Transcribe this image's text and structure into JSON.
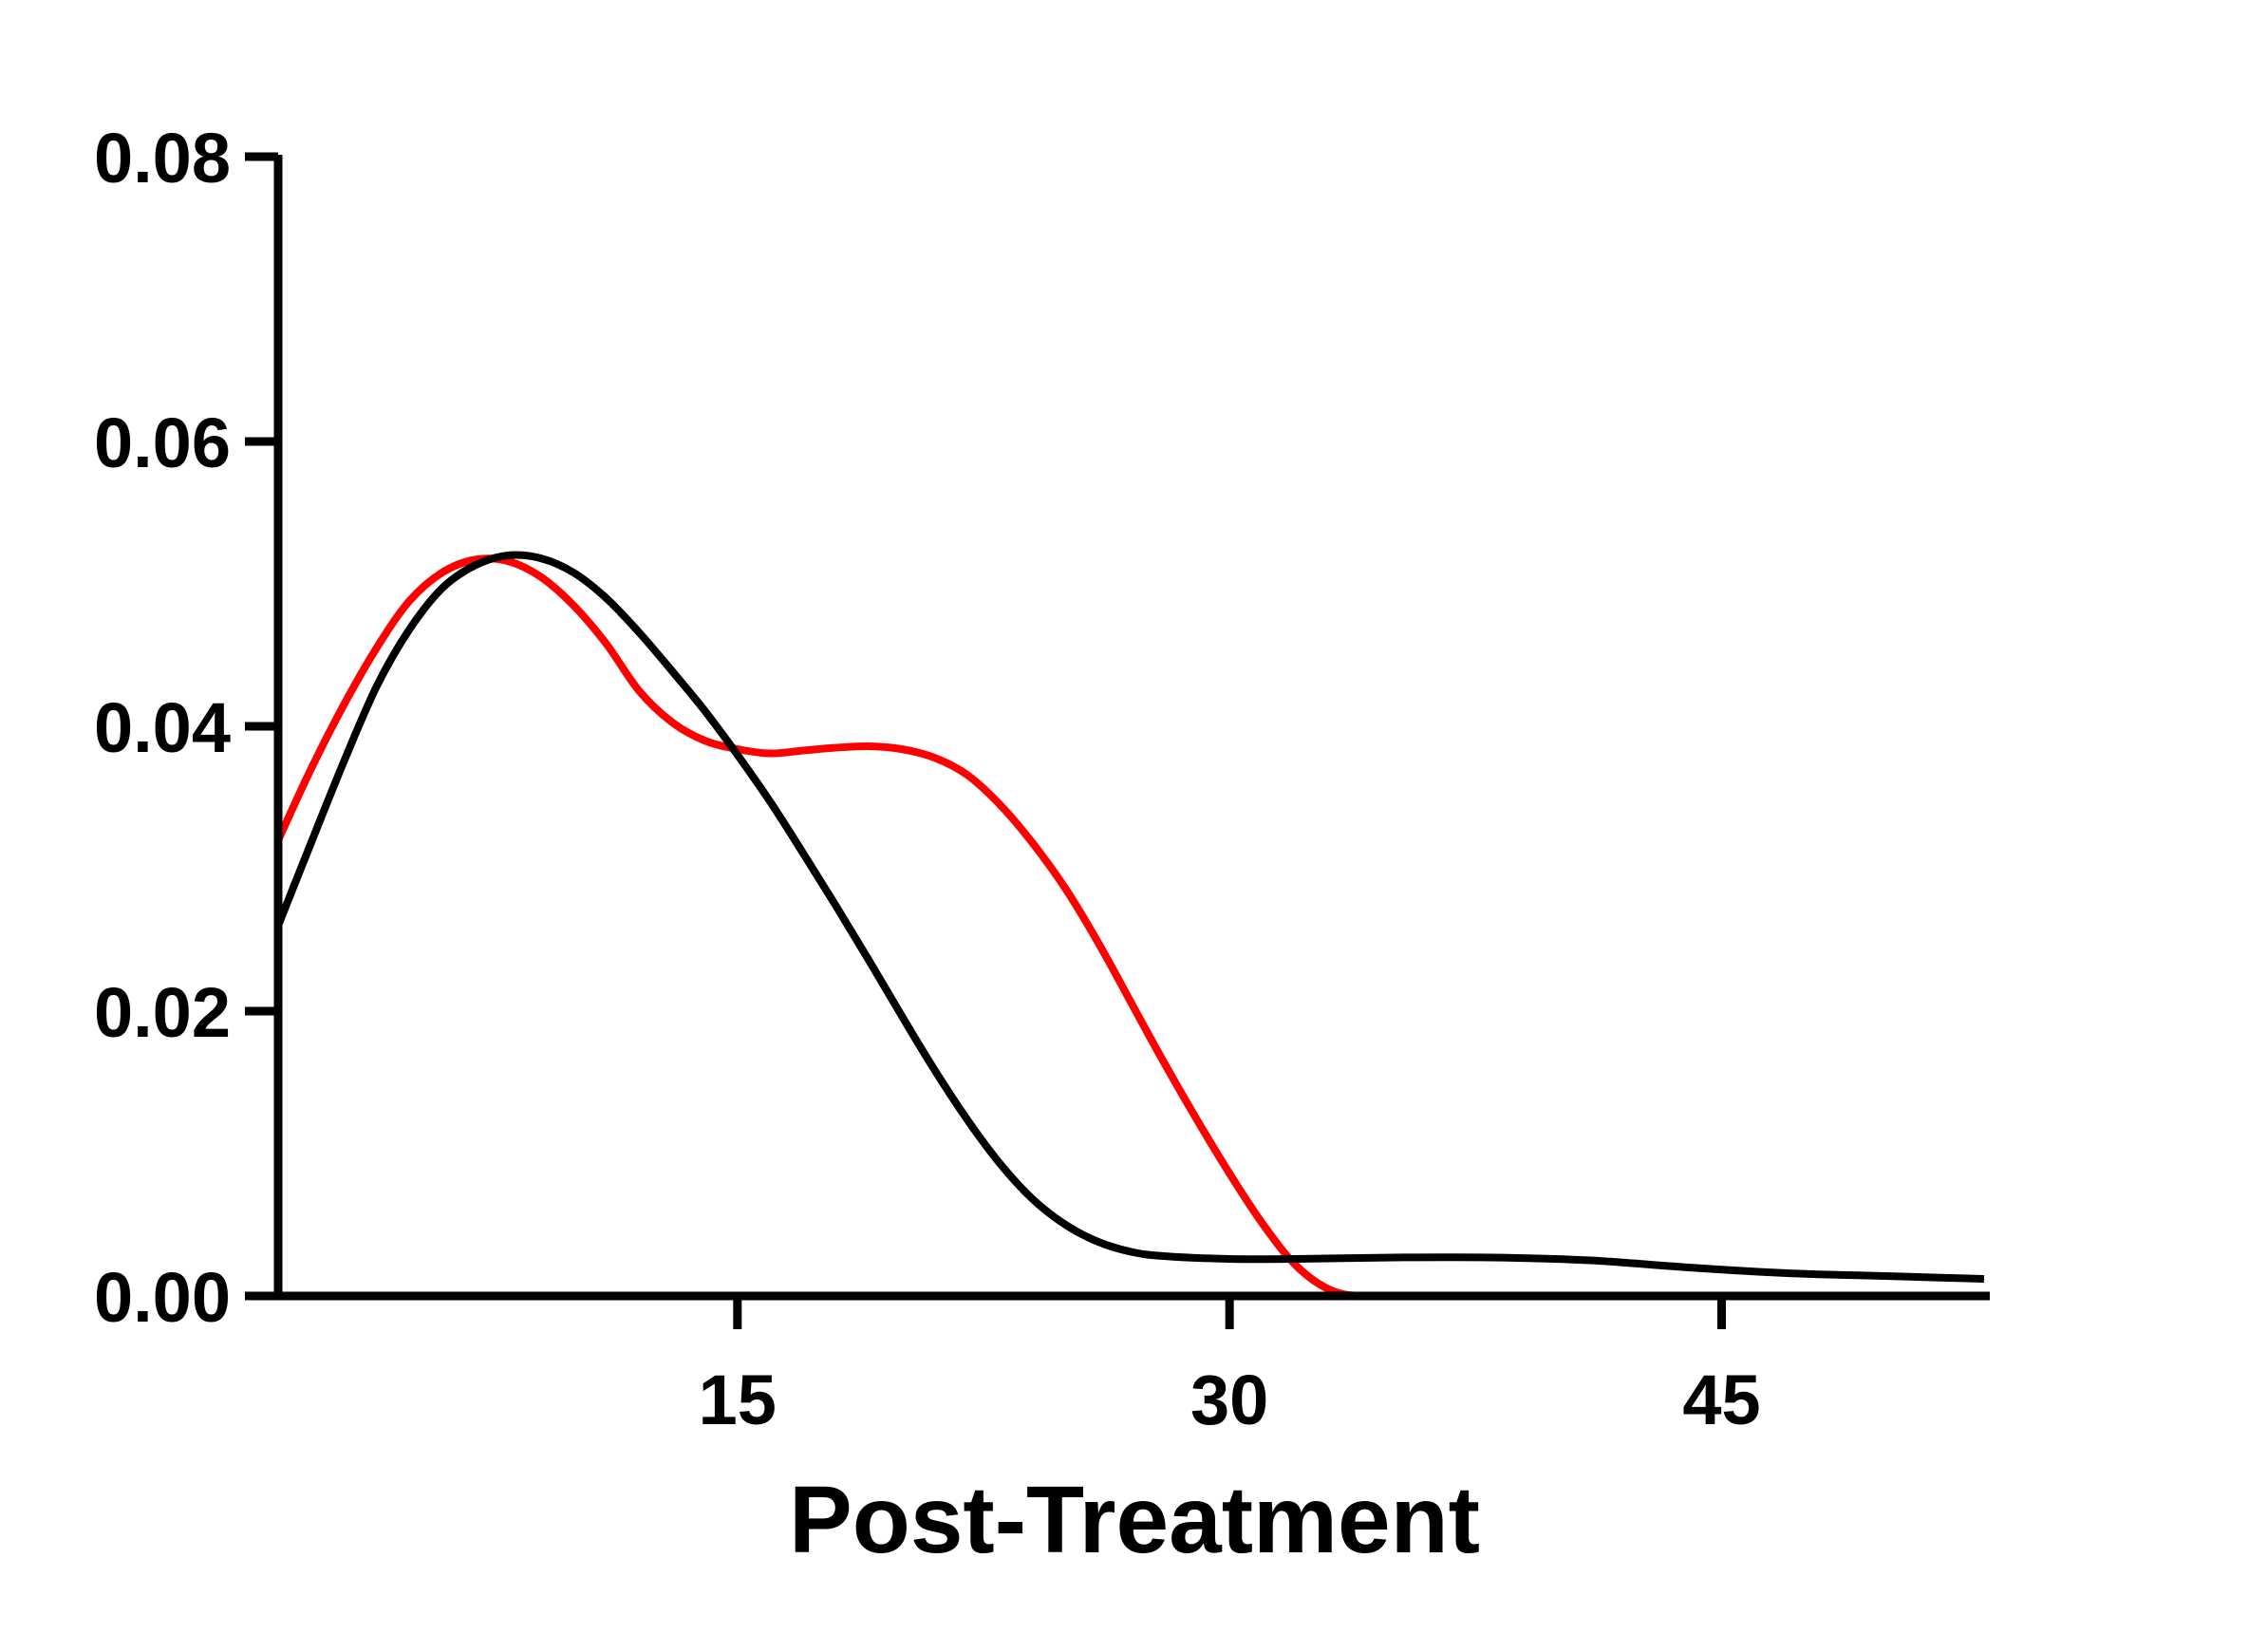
{
  "chart_data": {
    "type": "line",
    "title": "",
    "xlabel": "Post-Treatment",
    "ylabel": "",
    "xlim": [
      1,
      53
    ],
    "ylim": [
      0,
      0.08
    ],
    "x_ticks": [
      15,
      30,
      45
    ],
    "x_tick_labels": [
      "15",
      "30",
      "45"
    ],
    "y_ticks": [
      0,
      0.02,
      0.04,
      0.06,
      0.08
    ],
    "y_tick_labels": [
      "0.00",
      "0.02",
      "0.04",
      "0.06",
      "0.08"
    ],
    "grid": false,
    "legend": "none",
    "series": [
      {
        "color": "#ff0000",
        "points": [
          [
            1,
            0.032
          ],
          [
            2,
            0.037
          ],
          [
            3,
            0.0415
          ],
          [
            4,
            0.0455
          ],
          [
            5,
            0.0488
          ],
          [
            6,
            0.0508
          ],
          [
            7,
            0.0517
          ],
          [
            8,
            0.0516
          ],
          [
            9,
            0.0505
          ],
          [
            10,
            0.0485
          ],
          [
            11,
            0.0458
          ],
          [
            12,
            0.0425
          ],
          [
            13,
            0.0403
          ],
          [
            14,
            0.039
          ],
          [
            15,
            0.0384
          ],
          [
            16,
            0.0381
          ],
          [
            17,
            0.0383
          ],
          [
            18,
            0.0385
          ],
          [
            19,
            0.0386
          ],
          [
            20,
            0.0384
          ],
          [
            21,
            0.0378
          ],
          [
            22,
            0.0366
          ],
          [
            23,
            0.0345
          ],
          [
            24,
            0.0318
          ],
          [
            25,
            0.0286
          ],
          [
            26,
            0.0248
          ],
          [
            27,
            0.0206
          ],
          [
            28,
            0.0164
          ],
          [
            29,
            0.0124
          ],
          [
            30,
            0.0086
          ],
          [
            31,
            0.0051
          ],
          [
            32,
            0.0022
          ],
          [
            33,
            0.0005
          ],
          [
            34,
            0.0
          ],
          [
            36,
            0.0
          ],
          [
            40,
            0.0
          ],
          [
            45,
            0.0
          ],
          [
            50,
            0.0
          ],
          [
            53,
            0.0
          ]
        ]
      },
      {
        "color": "#000000",
        "points": [
          [
            1,
            0.026
          ],
          [
            2,
            0.0318
          ],
          [
            3,
            0.0375
          ],
          [
            4,
            0.0428
          ],
          [
            5,
            0.0468
          ],
          [
            6,
            0.0497
          ],
          [
            7,
            0.0513
          ],
          [
            8,
            0.052
          ],
          [
            9,
            0.0518
          ],
          [
            10,
            0.0508
          ],
          [
            11,
            0.049
          ],
          [
            12,
            0.0466
          ],
          [
            13,
            0.0439
          ],
          [
            14,
            0.0411
          ],
          [
            15,
            0.038
          ],
          [
            16,
            0.0347
          ],
          [
            17,
            0.0311
          ],
          [
            18,
            0.0274
          ],
          [
            19,
            0.0236
          ],
          [
            20,
            0.0197
          ],
          [
            21,
            0.0159
          ],
          [
            22,
            0.0124
          ],
          [
            23,
            0.0093
          ],
          [
            24,
            0.0068
          ],
          [
            25,
            0.005
          ],
          [
            26,
            0.0038
          ],
          [
            27,
            0.0031
          ],
          [
            28,
            0.0028
          ],
          [
            30,
            0.0026
          ],
          [
            32,
            0.0026
          ],
          [
            35,
            0.0027
          ],
          [
            38,
            0.0027
          ],
          [
            41,
            0.0025
          ],
          [
            44,
            0.002
          ],
          [
            47,
            0.0016
          ],
          [
            50,
            0.0014
          ],
          [
            53,
            0.0012
          ]
        ]
      }
    ]
  }
}
